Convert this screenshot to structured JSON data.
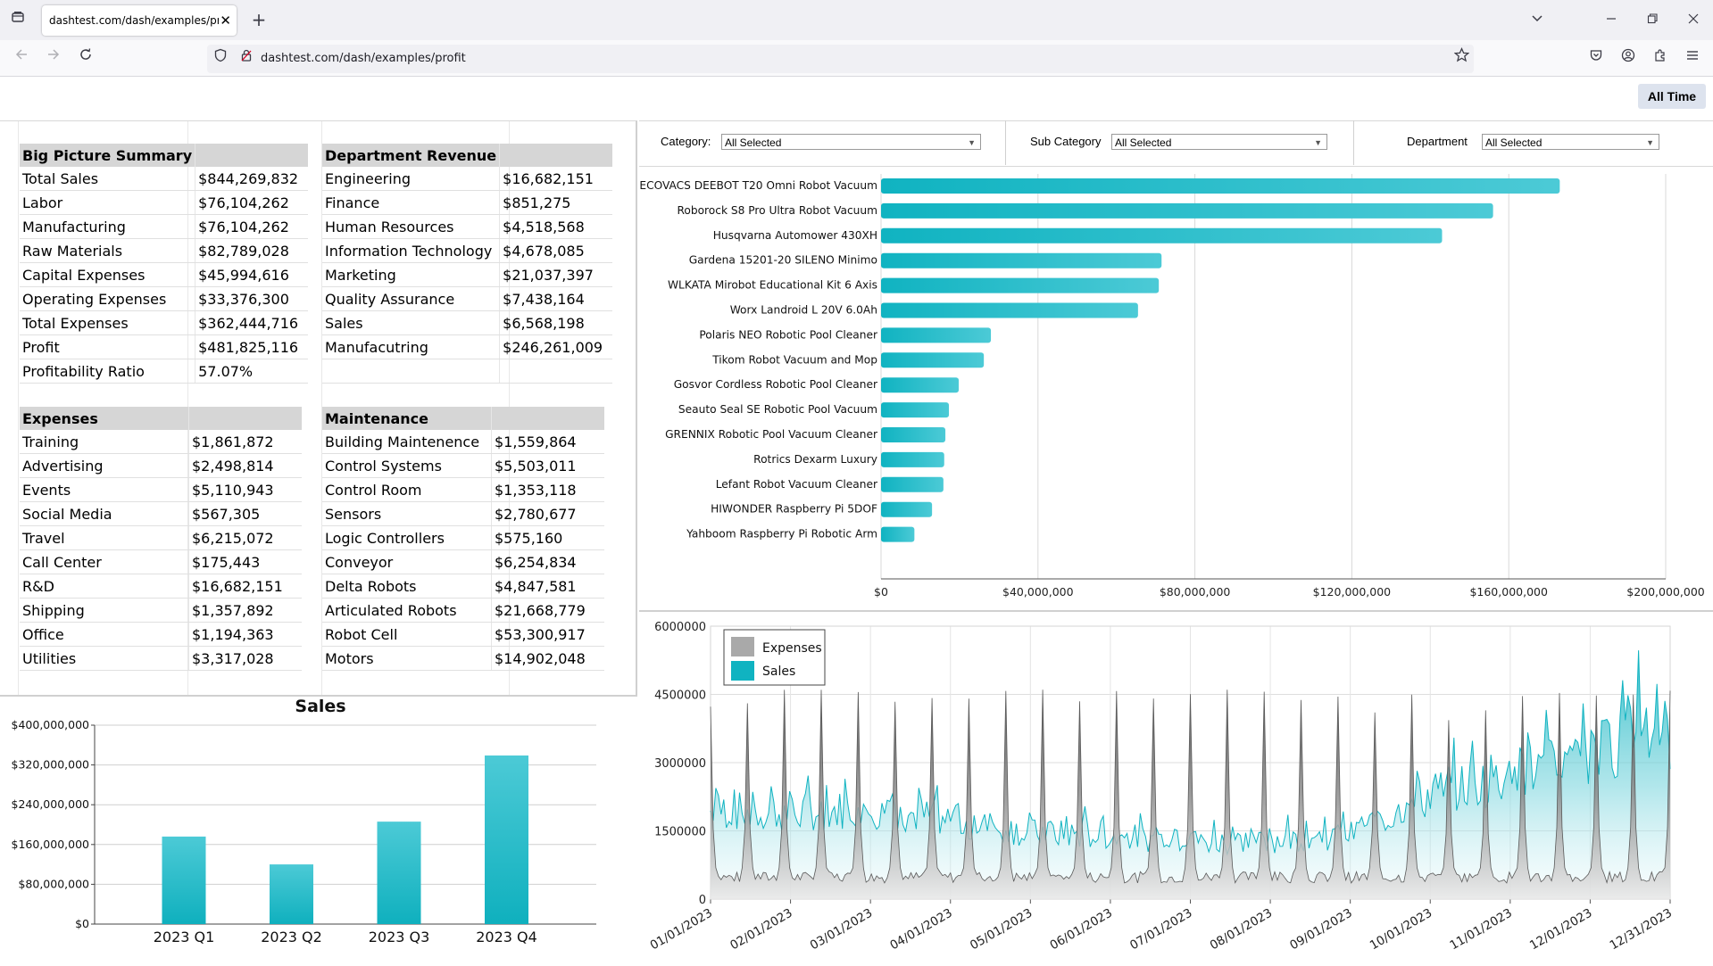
{
  "browser": {
    "tab_title": "dashtest.com/dash/examples/profit",
    "url": "dashtest.com/dash/examples/profit",
    "icons": [
      "page-icon",
      "new-tab-icon",
      "tab-list-icon",
      "minimize-icon",
      "restore-icon",
      "close-icon",
      "back-icon",
      "forward-icon",
      "reload-icon",
      "shield-icon",
      "lock-icon",
      "star-icon",
      "pocket-icon",
      "account-icon",
      "extensions-icon",
      "menu-icon"
    ]
  },
  "toolbar": {
    "all_time_label": "All Time"
  },
  "summary": {
    "big_picture": {
      "title": "Big Picture Summary",
      "rows": [
        [
          "Total Sales",
          "$844,269,832"
        ],
        [
          "Labor",
          "$76,104,262"
        ],
        [
          "Manufacturing",
          "$76,104,262"
        ],
        [
          "Raw Materials",
          "$82,789,028"
        ],
        [
          "Capital Expenses",
          "$45,994,616"
        ],
        [
          "Operating Expenses",
          "$33,376,300"
        ],
        [
          "Total Expenses",
          "$362,444,716"
        ],
        [
          "Profit",
          "$481,825,116"
        ],
        [
          "Profitability Ratio",
          "57.07%"
        ]
      ]
    },
    "department_revenue": {
      "title": "Department Revenue",
      "rows": [
        [
          "Engineering",
          "$16,682,151"
        ],
        [
          "Finance",
          "$851,275"
        ],
        [
          "Human Resources",
          "$4,518,568"
        ],
        [
          "Information Technology",
          "$4,678,085"
        ],
        [
          "Marketing",
          "$21,037,397"
        ],
        [
          "Quality Assurance",
          "$7,438,164"
        ],
        [
          "Sales",
          "$6,568,198"
        ],
        [
          "Manufacutring",
          "$246,261,009"
        ]
      ]
    },
    "expenses": {
      "title": "Expenses",
      "rows": [
        [
          "Training",
          "$1,861,872"
        ],
        [
          "Advertising",
          "$2,498,814"
        ],
        [
          "Events",
          "$5,110,943"
        ],
        [
          "Social Media",
          "$567,305"
        ],
        [
          "Travel",
          "$6,215,072"
        ],
        [
          "Call Center",
          "$175,443"
        ],
        [
          "R&D",
          "$16,682,151"
        ],
        [
          "Shipping",
          "$1,357,892"
        ],
        [
          "Office",
          "$1,194,363"
        ],
        [
          "Utilities",
          "$3,317,028"
        ]
      ]
    },
    "maintenance": {
      "title": "Maintenance",
      "rows": [
        [
          "Building Maintenence",
          "$1,559,864"
        ],
        [
          "Control Systems",
          "$5,503,011"
        ],
        [
          "Control Room",
          "$1,353,118"
        ],
        [
          "Sensors",
          "$2,780,677"
        ],
        [
          "Logic Controllers",
          "$575,160"
        ],
        [
          "Conveyor",
          "$6,254,834"
        ],
        [
          "Delta Robots",
          "$4,847,581"
        ],
        [
          "Articulated Robots",
          "$21,668,779"
        ],
        [
          "Robot Cell",
          "$53,300,917"
        ],
        [
          "Motors",
          "$14,902,048"
        ]
      ]
    }
  },
  "filters": {
    "category": {
      "label": "Category:",
      "value": "All Selected"
    },
    "sub_category": {
      "label": "Sub Category",
      "value": "All Selected"
    },
    "department": {
      "label": "Department",
      "value": "All Selected"
    }
  },
  "colors": {
    "accent": "#1ab6c4",
    "expense": "#9a9a9a",
    "grid": "#d9d9d9"
  },
  "chart_data": [
    {
      "type": "bar",
      "orientation": "horizontal",
      "categories": [
        "ECOVACS DEEBOT T20 Omni Robot Vacuum",
        "Roborock S8 Pro Ultra Robot Vacuum",
        "Husqvarna Automower 430XH",
        "Gardena 15201-20 SILENO Minimo",
        "WLKATA Mirobot Educational Kit 6 Axis",
        "Worx Landroid L 20V 6.0Ah",
        "Polaris NEO Robotic Pool Cleaner",
        "Tikom Robot Vacuum and Mop",
        "Gosvor Cordless Robotic Pool Cleaner",
        "Seauto Seal SE Robotic Pool Vacuum",
        "GRENNIX Robotic Pool Vacuum Cleaner",
        "Rotrics Dexarm Luxury",
        "Lefant Robot Vacuum Cleaner",
        "HIWONDER Raspberry Pi 5DOF",
        "Yahboom Raspberry Pi Robotic Arm"
      ],
      "values": [
        173000000,
        156000000,
        143000000,
        71500000,
        70800000,
        65500000,
        28000000,
        26200000,
        19800000,
        17300000,
        16400000,
        16100000,
        15900000,
        13000000,
        8500000
      ],
      "xlim": [
        0,
        200000000
      ],
      "xticks": [
        "$0",
        "$40,000,000",
        "$80,000,000",
        "$120,000,000",
        "$160,000,000",
        "$200,000,000"
      ],
      "grid": true
    },
    {
      "type": "area",
      "series": [
        {
          "name": "Expenses"
        },
        {
          "name": "Sales"
        }
      ],
      "ylim": [
        0,
        6000000
      ],
      "yticks": [
        "0",
        "1500000",
        "3000000",
        "4500000",
        "6000000"
      ],
      "xticks": [
        "01/01/2023",
        "02/01/2023",
        "03/01/2023",
        "04/01/2023",
        "05/01/2023",
        "06/01/2023",
        "07/01/2023",
        "08/01/2023",
        "09/01/2023",
        "10/01/2023",
        "11/01/2023",
        "12/01/2023",
        "12/31/2023"
      ],
      "legend": "top-left",
      "grid": true,
      "sales_monthly_level": [
        1950000,
        1900000,
        2000000,
        1750000,
        1450000,
        1400000,
        1250000,
        1300000,
        1400000,
        2300000,
        2700000,
        3100000,
        4100000
      ],
      "expense_base_level": 430000,
      "expense_spike_level": [
        4400000,
        4400000,
        4400000,
        4400000,
        4400000,
        4500000,
        4500000,
        4600000,
        4300000,
        4100000,
        4500000,
        4500000,
        4500000
      ]
    },
    {
      "type": "bar",
      "title": "Sales",
      "categories": [
        "2023 Q1",
        "2023 Q2",
        "2023 Q3",
        "2023 Q4"
      ],
      "values": [
        176000000,
        120000000,
        206000000,
        339000000
      ],
      "ylim": [
        0,
        400000000
      ],
      "yticks": [
        "$0",
        "$80,000,000",
        "$160,000,000",
        "$240,000,000",
        "$320,000,000",
        "$400,000,000"
      ],
      "grid": true
    }
  ]
}
